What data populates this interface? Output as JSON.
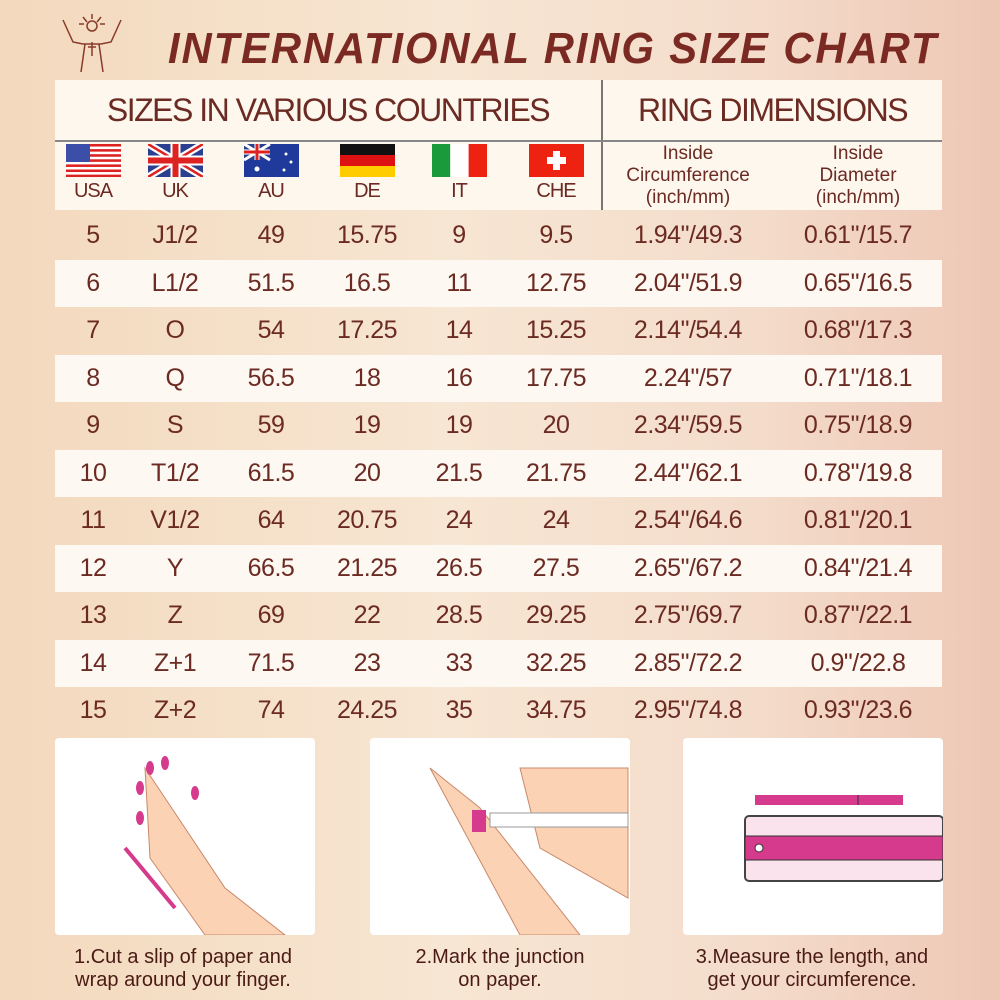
{
  "title": "INTERNATIONAL RING SIZE CHART",
  "header": {
    "sizes_label": "SIZES IN VARIOUS COUNTRIES",
    "dimensions_label": "RING DIMENSIONS",
    "countries": [
      {
        "code": "USA",
        "flag": "us-flag"
      },
      {
        "code": "UK",
        "flag": "uk-flag"
      },
      {
        "code": "AU",
        "flag": "au-flag"
      },
      {
        "code": "DE",
        "flag": "de-flag"
      },
      {
        "code": "IT",
        "flag": "it-flag"
      },
      {
        "code": "CHE",
        "flag": "ch-flag"
      }
    ],
    "circumference": [
      "Inside",
      "Circumference",
      "(inch/mm)"
    ],
    "diameter": [
      "Inside",
      "Diameter",
      "(inch/mm)"
    ]
  },
  "rows": [
    [
      "5",
      "J1/2",
      "49",
      "15.75",
      "9",
      "9.5",
      "1.94\"/49.3",
      "0.61\"/15.7"
    ],
    [
      "6",
      "L1/2",
      "51.5",
      "16.5",
      "11",
      "12.75",
      "2.04\"/51.9",
      "0.65\"/16.5"
    ],
    [
      "7",
      "O",
      "54",
      "17.25",
      "14",
      "15.25",
      "2.14\"/54.4",
      "0.68\"/17.3"
    ],
    [
      "8",
      "Q",
      "56.5",
      "18",
      "16",
      "17.75",
      "2.24\"/57",
      "0.71\"/18.1"
    ],
    [
      "9",
      "S",
      "59",
      "19",
      "19",
      "20",
      "2.34\"/59.5",
      "0.75\"/18.9"
    ],
    [
      "10",
      "T1/2",
      "61.5",
      "20",
      "21.5",
      "21.75",
      "2.44\"/62.1",
      "0.78\"/19.8"
    ],
    [
      "11",
      "V1/2",
      "64",
      "20.75",
      "24",
      "24",
      "2.54\"/64.6",
      "0.81\"/20.1"
    ],
    [
      "12",
      "Y",
      "66.5",
      "21.25",
      "26.5",
      "27.5",
      "2.65\"/67.2",
      "0.84\"/21.4"
    ],
    [
      "13",
      "Z",
      "69",
      "22",
      "28.5",
      "29.25",
      "2.75\"/69.7",
      "0.87\"/22.1"
    ],
    [
      "14",
      "Z+1",
      "71.5",
      "23",
      "33",
      "32.25",
      "2.85\"/72.2",
      "0.9\"/22.8"
    ],
    [
      "15",
      "Z+2",
      "74",
      "24.25",
      "35",
      "34.75",
      "2.95\"/74.8",
      "0.93\"/23.6"
    ]
  ],
  "steps": [
    {
      "line1": "1.Cut a slip of paper and",
      "line2": "wrap around your finger."
    },
    {
      "line1": "2.Mark the junction",
      "line2": "on paper."
    },
    {
      "line1": "3.Measure the length, and",
      "line2": "get your circumference."
    }
  ],
  "colors": {
    "text": "#6b2a22",
    "accent": "#d63a8c",
    "skin": "#fbd3b4"
  }
}
